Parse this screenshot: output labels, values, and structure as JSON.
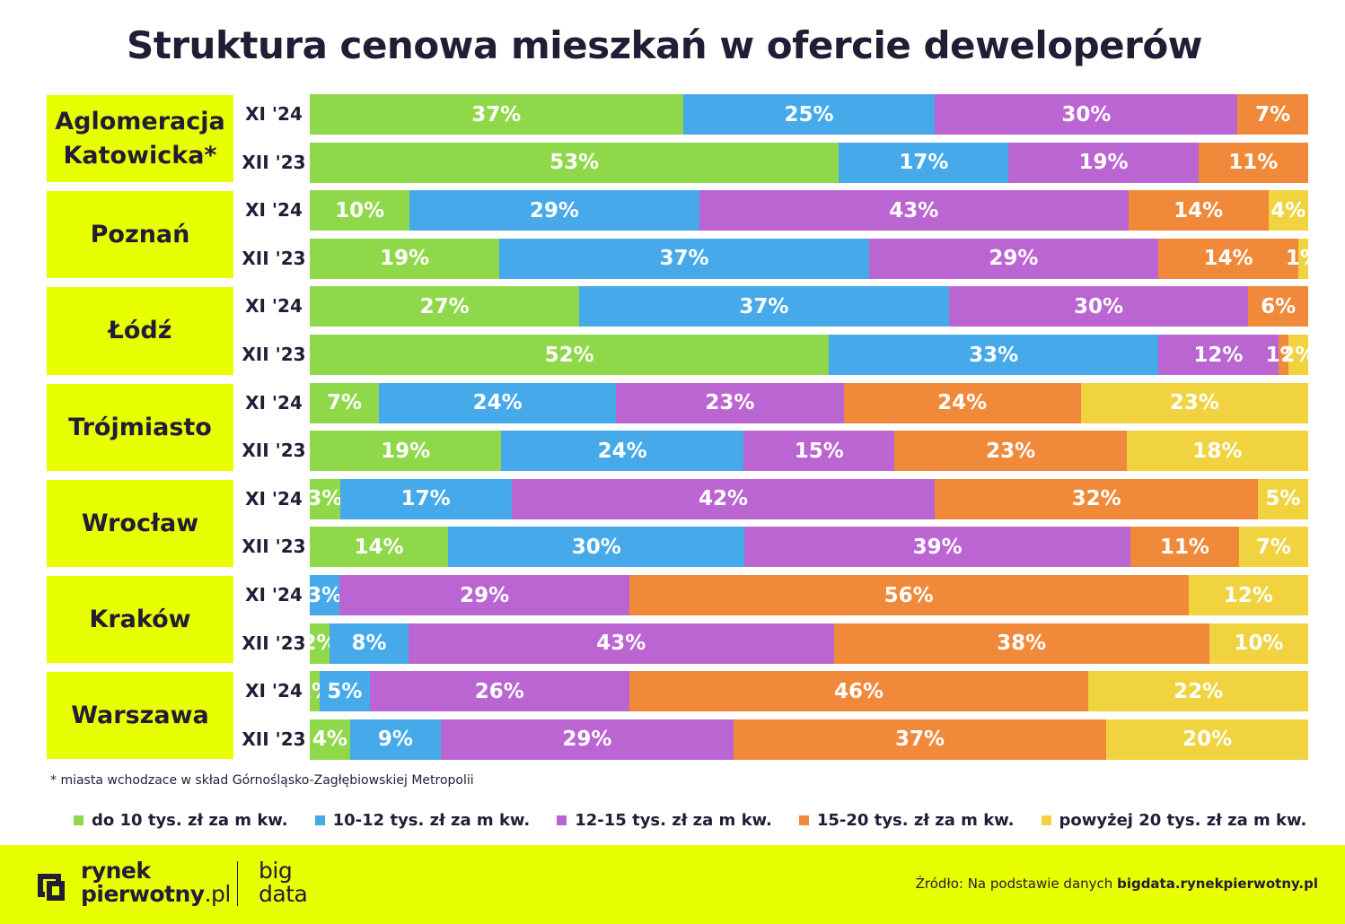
{
  "title": "Struktura cenowa mieszkań w ofercie deweloperów",
  "footnote": "* miasta wchodzace w skład Górnośląsko-Zagłębiowskiej Metropolii",
  "source": {
    "prefix": "Źródło: Na podstawie danych",
    "link": "bigdata.rynekpierwotny.pl"
  },
  "logo": {
    "line1": "rynek",
    "line2a": "pierwotny",
    "line2b": ".pl",
    "big": "big",
    "data": "data"
  },
  "colors": {
    "accent": "#e8ff00",
    "text": "#231c35",
    "series": [
      "#8ed84a",
      "#45a9ea",
      "#bb65d3",
      "#f0893a",
      "#f0d33e"
    ]
  },
  "chart_data": {
    "type": "bar",
    "orientation": "horizontal",
    "stacked": true,
    "normalized_to": 100,
    "title": "Struktura cenowa mieszkań w ofercie deweloperów",
    "series": [
      {
        "name": "do 10 tys. zł za m kw."
      },
      {
        "name": "10-12 tys. zł za m kw."
      },
      {
        "name": "12-15 tys. zł za m kw."
      },
      {
        "name": "15-20 tys. zł za m kw."
      },
      {
        "name": "powyżej 20 tys. zł za m kw."
      }
    ],
    "legend_position": "bottom",
    "groups": [
      {
        "city": "Aglomeracja Katowicka*",
        "rows": [
          {
            "period": "XI '24",
            "values": [
              37,
              25,
              30,
              7
            ]
          },
          {
            "period": "XII '23",
            "values": [
              53,
              17,
              19,
              11
            ]
          }
        ]
      },
      {
        "city": "Poznań",
        "rows": [
          {
            "period": "XI '24",
            "values": [
              10,
              29,
              43,
              14,
              4
            ]
          },
          {
            "period": "XII '23",
            "values": [
              19,
              37,
              29,
              14,
              1
            ]
          }
        ]
      },
      {
        "city": "Łódź",
        "rows": [
          {
            "period": "XI '24",
            "values": [
              27,
              37,
              30,
              6
            ]
          },
          {
            "period": "XII '23",
            "values": [
              52,
              33,
              12,
              1,
              2
            ]
          }
        ]
      },
      {
        "city": "Trójmiasto",
        "rows": [
          {
            "period": "XI '24",
            "values": [
              7,
              24,
              23,
              24,
              23
            ]
          },
          {
            "period": "XII '23",
            "values": [
              19,
              24,
              15,
              23,
              18
            ]
          }
        ]
      },
      {
        "city": "Wrocław",
        "rows": [
          {
            "period": "XI '24",
            "values": [
              3,
              17,
              42,
              32,
              5
            ]
          },
          {
            "period": "XII '23",
            "values": [
              14,
              30,
              39,
              11,
              7
            ]
          }
        ]
      },
      {
        "city": "Kraków",
        "rows": [
          {
            "period": "XI '24",
            "values": [
              0,
              3,
              29,
              56,
              12
            ]
          },
          {
            "period": "XII '23",
            "values": [
              2,
              8,
              43,
              38,
              10
            ]
          }
        ]
      },
      {
        "city": "Warszawa",
        "rows": [
          {
            "period": "XI '24",
            "values": [
              1,
              5,
              26,
              46,
              22
            ]
          },
          {
            "period": "XII '23",
            "values": [
              4,
              9,
              29,
              37,
              20
            ]
          }
        ]
      }
    ]
  }
}
